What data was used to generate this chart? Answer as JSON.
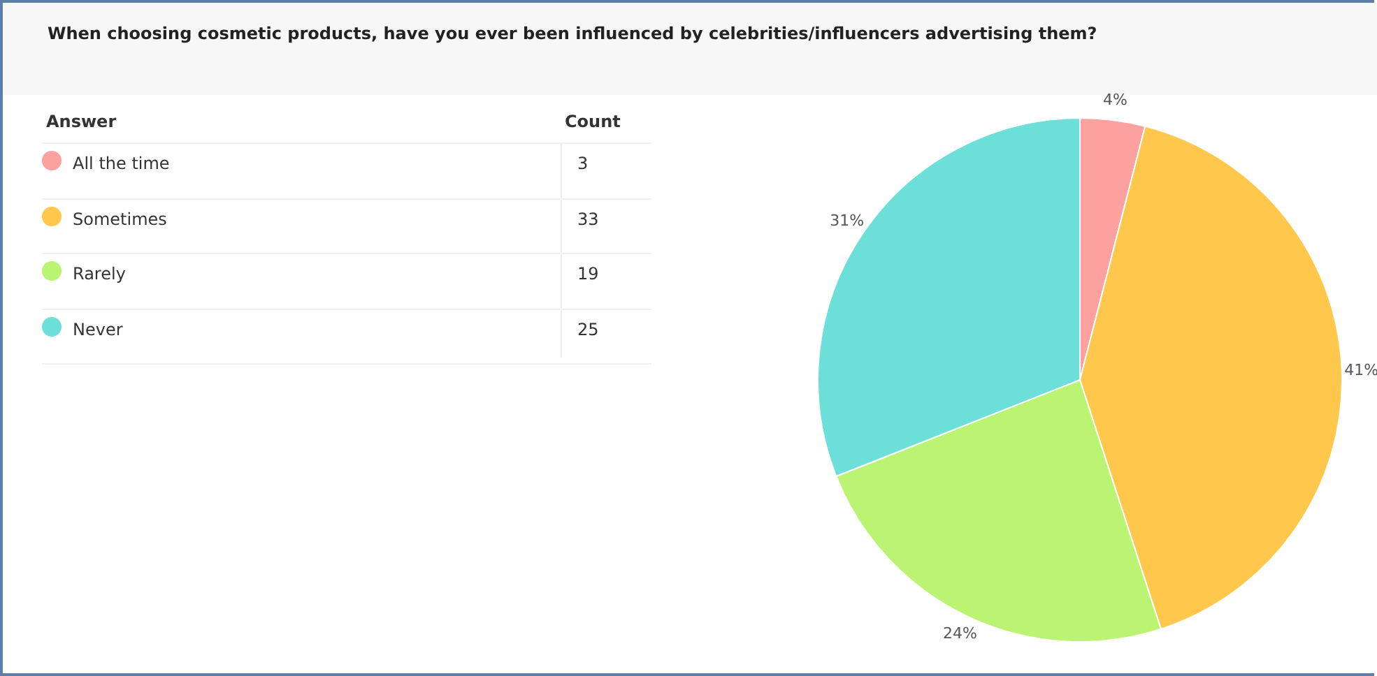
{
  "chart_data": {
    "type": "pie",
    "title": "When choosing cosmetic products, have you ever been influenced by celebrities/influencers advertising them?",
    "categories": [
      "All the time",
      "Sometimes",
      "Rarely",
      "Never"
    ],
    "values": [
      4,
      41,
      24,
      31
    ],
    "colors": [
      "#fda0a0",
      "#ffc84d",
      "#baf472",
      "#6cdfd9"
    ],
    "value_labels": [
      "4%",
      "41%",
      "24%",
      "31%"
    ],
    "legend": "left",
    "legend_title": "Answer",
    "annotations": [
      "Count",
      "3",
      "33",
      "19",
      "25"
    ]
  }
}
